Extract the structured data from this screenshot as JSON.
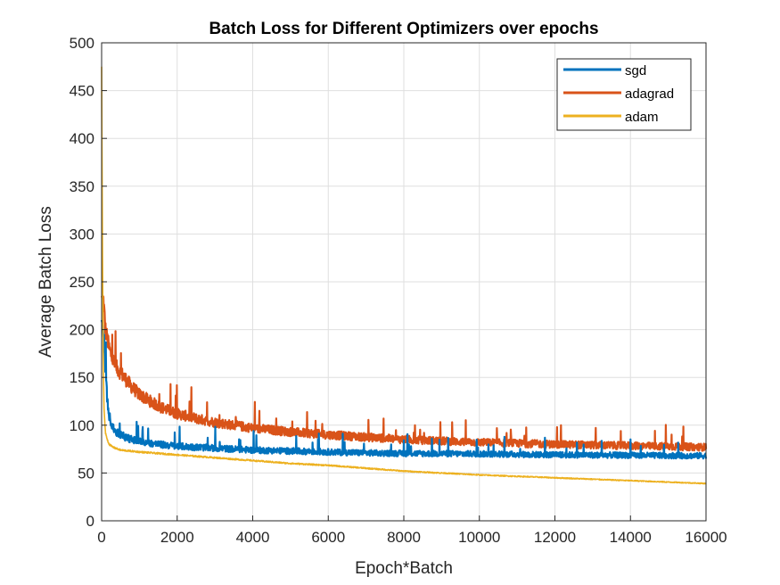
{
  "chart_data": {
    "type": "line",
    "title": "Batch Loss for Different Optimizers over epochs",
    "xlabel": "Epoch*Batch",
    "ylabel": "Average Batch Loss",
    "xlim": [
      0,
      16000
    ],
    "ylim": [
      0,
      500
    ],
    "xticks": [
      0,
      2000,
      4000,
      6000,
      8000,
      10000,
      12000,
      14000,
      16000
    ],
    "yticks": [
      0,
      50,
      100,
      150,
      200,
      250,
      300,
      350,
      400,
      450,
      500
    ],
    "grid": true,
    "legend_position": "top-right",
    "series": [
      {
        "name": "sgd",
        "color": "#0072BD",
        "x": [
          0,
          50,
          100,
          150,
          200,
          300,
          400,
          600,
          800,
          1000,
          1500,
          2000,
          3000,
          4000,
          5000,
          6000,
          7000,
          8000,
          10000,
          12000,
          14000,
          16000
        ],
        "y": [
          210,
          200,
          160,
          125,
          110,
          97,
          92,
          88,
          85,
          83,
          80,
          78,
          76,
          74,
          73,
          72,
          71,
          70.5,
          70,
          69,
          68.5,
          68
        ]
      },
      {
        "name": "adagrad",
        "color": "#D95319",
        "x": [
          0,
          50,
          100,
          200,
          300,
          400,
          600,
          800,
          1000,
          1500,
          2000,
          2500,
          3000,
          4000,
          5000,
          6000,
          7000,
          8000,
          10000,
          12000,
          14000,
          16000
        ],
        "y": [
          235,
          230,
          200,
          180,
          168,
          160,
          150,
          140,
          132,
          120,
          112,
          107,
          103,
          97,
          93,
          90,
          87.5,
          85,
          82,
          80,
          78.5,
          77
        ]
      },
      {
        "name": "adam",
        "color": "#EDB120",
        "x": [
          0,
          20,
          40,
          60,
          100,
          150,
          200,
          300,
          500,
          1000,
          2000,
          3000,
          4000,
          5000,
          6000,
          7000,
          8000,
          9000,
          10000,
          12000,
          14000,
          16000
        ],
        "y": [
          475,
          300,
          180,
          120,
          92,
          85,
          80,
          77,
          74,
          72,
          69,
          66,
          63,
          60,
          58,
          55,
          52,
          50,
          48,
          45,
          42,
          39
        ]
      }
    ]
  }
}
